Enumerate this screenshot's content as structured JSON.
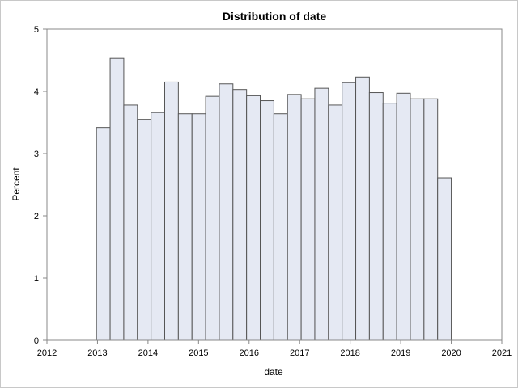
{
  "chart_data": {
    "type": "bar",
    "title": "Distribution of date",
    "xlabel": "date",
    "ylabel": "Percent",
    "xlim": [
      2012,
      2021
    ],
    "ylim": [
      0,
      5
    ],
    "x_ticks": [
      "2012",
      "2013",
      "2014",
      "2015",
      "2016",
      "2017",
      "2018",
      "2019",
      "2020",
      "2021"
    ],
    "y_ticks": [
      "0",
      "1",
      "2",
      "3",
      "4",
      "5"
    ],
    "grid": false,
    "legend": "none",
    "bin_width_years": 0.27,
    "bins_start": [
      2012.98,
      2013.25,
      2013.52,
      2013.79,
      2014.06,
      2014.33,
      2014.6,
      2014.87,
      2015.14,
      2015.41,
      2015.68,
      2015.95,
      2016.22,
      2016.49,
      2016.76,
      2017.03,
      2017.3,
      2017.57,
      2017.84,
      2018.11,
      2018.38,
      2018.65,
      2018.92,
      2019.19,
      2019.46,
      2019.73
    ],
    "values": [
      3.42,
      4.53,
      3.78,
      3.55,
      3.66,
      4.15,
      3.64,
      3.64,
      3.92,
      4.12,
      4.03,
      3.93,
      3.85,
      3.64,
      3.95,
      3.88,
      4.05,
      3.78,
      4.14,
      4.23,
      3.98,
      3.81,
      3.97,
      3.88,
      3.88,
      2.61
    ],
    "colors": {
      "bar_fill": "#e5e9f3",
      "bar_stroke": "#555555",
      "axis": "#888888",
      "frame": "#c8c8c8"
    }
  }
}
